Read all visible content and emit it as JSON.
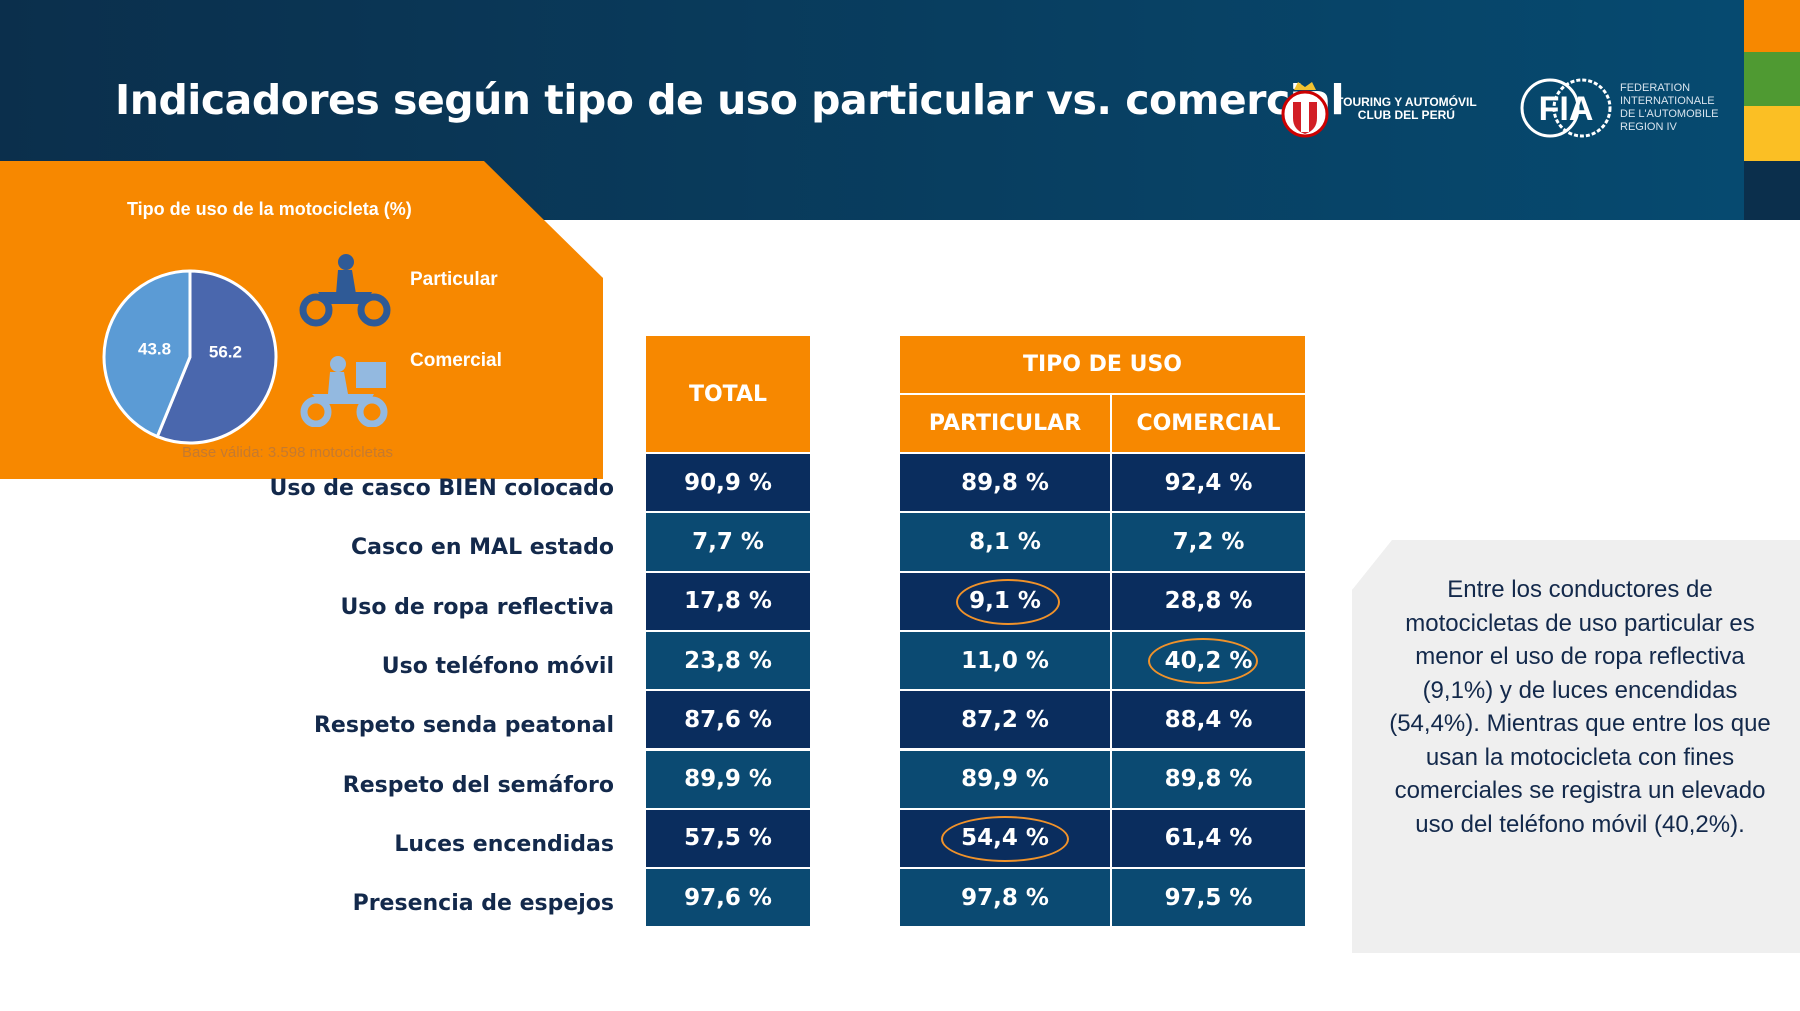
{
  "header": {
    "title": "Indicadores según tipo de uso particular vs. comercial"
  },
  "logos": {
    "touring": "TOURING Y AUTOMÓVIL CLUB DEL PERÚ",
    "touring_lines": [
      "TOURING Y AUTOMÓVIL",
      "CLUB DEL PERÚ"
    ],
    "fia": "FIA",
    "fia_lines": [
      "FEDERATION",
      "INTERNATIONALE",
      "DE L'AUTOMOBILE",
      "REGION IV"
    ]
  },
  "colors": {
    "orange": "#f78800",
    "green": "#4f9a32",
    "yellow": "#fbbf24",
    "navy": "#0a2d5e",
    "teal": "#0b4a72",
    "pie_particular": "#4a67ad",
    "pie_comercial": "#5b9bd5"
  },
  "chart_data": {
    "type": "pie",
    "title": "Tipo de uso de la motocicleta (%)",
    "categories": [
      "Particular",
      "Comercial"
    ],
    "values": [
      56.2,
      43.8
    ],
    "value_labels": [
      "56.2",
      "43.8"
    ],
    "note": "Base válida: 3.598 motocicletas"
  },
  "legend": {
    "particular": "Particular",
    "comercial": "Comercial",
    "icons": [
      "motorcycle-rider-icon",
      "delivery-motorcycle-icon"
    ]
  },
  "table": {
    "total_header": "TOTAL",
    "group_header": "TIPO DE USO",
    "columns": [
      "PARTICULAR",
      "COMERCIAL"
    ],
    "rows": [
      {
        "label": "Uso de casco BIEN colocado",
        "total": "90,9 %",
        "particular": "89,8 %",
        "comercial": "92,4 %"
      },
      {
        "label": "Casco en MAL estado",
        "total": "7,7 %",
        "particular": "8,1 %",
        "comercial": "7,2 %"
      },
      {
        "label": "Uso de ropa reflectiva",
        "total": "17,8 %",
        "particular": "9,1 %",
        "comercial": "28,8 %"
      },
      {
        "label": "Uso teléfono móvil",
        "total": "23,8 %",
        "particular": "11,0 %",
        "comercial": "40,2 %"
      },
      {
        "label": "Respeto senda peatonal",
        "total": "87,6 %",
        "particular": "87,2 %",
        "comercial": "88,4 %"
      },
      {
        "label": "Respeto del semáforo",
        "total": "89,9 %",
        "particular": "89,9 %",
        "comercial": "89,8 %"
      },
      {
        "label": "Luces encendidas",
        "total": "57,5 %",
        "particular": "54,4 %",
        "comercial": "61,4 %"
      },
      {
        "label": "Presencia de espejos",
        "total": "97,6 %",
        "particular": "97,8 %",
        "comercial": "97,5 %"
      }
    ],
    "highlighted": [
      "Uso de ropa reflectiva / PARTICULAR",
      "Uso teléfono móvil / COMERCIAL",
      "Luces encendidas / PARTICULAR"
    ]
  },
  "note": {
    "text": "Entre los conductores de motocicletas de uso particular es menor el uso de ropa reflectiva (9,1%) y de luces encendidas (54,4%). Mientras que entre los que usan la motocicleta con fines comerciales se registra un elevado uso del teléfono móvil (40,2%)."
  }
}
